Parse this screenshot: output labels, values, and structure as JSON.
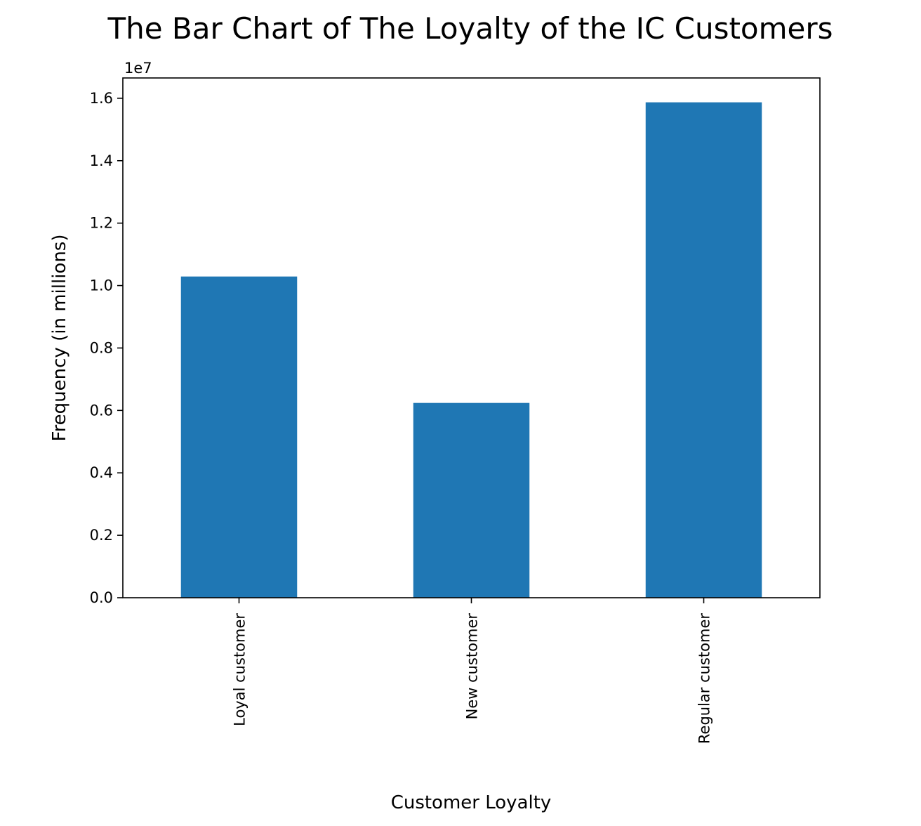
{
  "chart_data": {
    "type": "bar",
    "title": "The Bar Chart of The Loyalty of the IC Customers",
    "xlabel": "Customer Loyalty",
    "ylabel": "Frequency (in millions)",
    "offset_label": "1e7",
    "categories": [
      "Loyal customer",
      "New customer",
      "Regular customer"
    ],
    "values": [
      10290000,
      6240000,
      15870000
    ],
    "ylim": [
      0,
      16650000
    ],
    "yticks": [
      0,
      2000000,
      4000000,
      6000000,
      8000000,
      10000000,
      12000000,
      14000000,
      16000000
    ],
    "ytick_labels": [
      "0.0",
      "0.2",
      "0.4",
      "0.6",
      "0.8",
      "1.0",
      "1.2",
      "1.4",
      "1.6"
    ],
    "bar_color": "#1f77b4",
    "grid": false,
    "legend": "none"
  }
}
